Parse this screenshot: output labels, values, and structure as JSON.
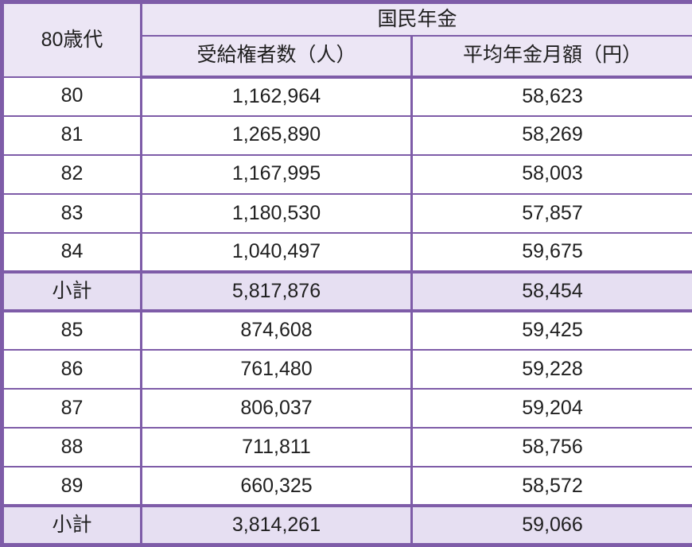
{
  "chart_data": {
    "type": "table",
    "title": "国民年金",
    "header": {
      "age_group": "80歳代",
      "pension_title": "国民年金",
      "recipients": "受給権者数（人）",
      "average": "平均年金月額（円）"
    },
    "rows": [
      {
        "label": "80",
        "recipients": "1,162,964",
        "average": "58,623",
        "subtotal": false
      },
      {
        "label": "81",
        "recipients": "1,265,890",
        "average": "58,269",
        "subtotal": false
      },
      {
        "label": "82",
        "recipients": "1,167,995",
        "average": "58,003",
        "subtotal": false
      },
      {
        "label": "83",
        "recipients": "1,180,530",
        "average": "57,857",
        "subtotal": false
      },
      {
        "label": "84",
        "recipients": "1,040,497",
        "average": "59,675",
        "subtotal": false
      },
      {
        "label": "小計",
        "recipients": "5,817,876",
        "average": "58,454",
        "subtotal": true
      },
      {
        "label": "85",
        "recipients": "874,608",
        "average": "59,425",
        "subtotal": false
      },
      {
        "label": "86",
        "recipients": "761,480",
        "average": "59,228",
        "subtotal": false
      },
      {
        "label": "87",
        "recipients": "806,037",
        "average": "59,204",
        "subtotal": false
      },
      {
        "label": "88",
        "recipients": "711,811",
        "average": "58,756",
        "subtotal": false
      },
      {
        "label": "89",
        "recipients": "660,325",
        "average": "58,572",
        "subtotal": false
      },
      {
        "label": "小計",
        "recipients": "3,814,261",
        "average": "59,066",
        "subtotal": true
      }
    ]
  },
  "colors": {
    "border": "#7e5ca8",
    "header_bg": "#ece6f5",
    "subtotal_bg": "#e6dff2",
    "text": "#1f1f1f"
  }
}
